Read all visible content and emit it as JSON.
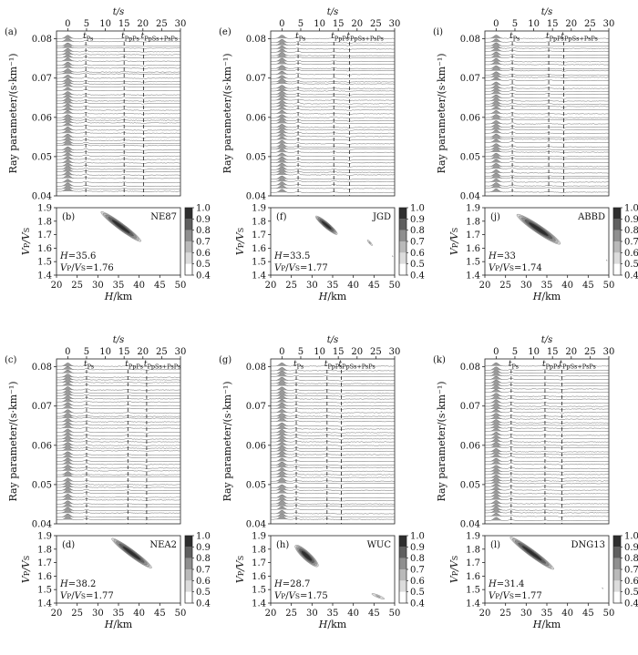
{
  "chart_data": {
    "common": {
      "rf_time_axis": {
        "label": "t/s",
        "ticks": [
          0,
          5,
          10,
          15,
          20,
          25,
          30
        ],
        "range": [
          -3,
          30
        ]
      },
      "rf_ray_axis": {
        "label": "Ray parameter/(s·km⁻¹)",
        "ticks": [
          "0.04",
          "0.05",
          "0.06",
          "0.07",
          "0.08"
        ],
        "range": [
          0.04,
          0.082
        ]
      },
      "phase_labels": [
        "t_Ps",
        "t_PpPs",
        "t_PpSs+PsPs"
      ],
      "hk_x_axis": {
        "label": "H/km",
        "ticks": [
          20,
          25,
          30,
          35,
          40,
          45,
          50
        ],
        "range": [
          20,
          50
        ]
      },
      "hk_y_axis": {
        "label": "VP/VS",
        "ticks": [
          "1.4",
          "1.5",
          "1.6",
          "1.7",
          "1.8",
          "1.9"
        ],
        "range": [
          1.4,
          1.9
        ]
      },
      "colorbar": {
        "ticks": [
          "0.4",
          "0.5",
          "0.6",
          "0.7",
          "0.8",
          "0.9",
          "1.0"
        ],
        "range": [
          0.4,
          1.0
        ]
      }
    },
    "stations": [
      {
        "rf_label": "(a)",
        "hk_label": "(b)",
        "station": "NE87",
        "H": "35.6",
        "VpVs": "1.76",
        "type": "heatmap",
        "t_ps": 4.8,
        "t_ppps": 15.0,
        "t_ppss": 20.2,
        "blobs": [
          {
            "H": 35.6,
            "k": 1.76,
            "slope": -0.022,
            "sa": 5.5,
            "sb": 0.035,
            "amp": 1.0
          }
        ]
      },
      {
        "rf_label": "(e)",
        "hk_label": "(f)",
        "station": "JGD",
        "H": "33.5",
        "VpVs": "1.77",
        "type": "heatmap",
        "t_ps": 4.3,
        "t_ppps": 13.8,
        "t_ppss": 18.0,
        "blobs": [
          {
            "H": 33.5,
            "k": 1.77,
            "slope": -0.024,
            "sa": 3.0,
            "sb": 0.03,
            "amp": 1.0
          },
          {
            "H": 44.0,
            "k": 1.64,
            "slope": -0.03,
            "sa": 1.2,
            "sb": 0.02,
            "amp": 0.6
          },
          {
            "H": 49.5,
            "k": 1.54,
            "slope": -0.03,
            "sa": 0.6,
            "sb": 0.015,
            "amp": 0.5
          }
        ]
      },
      {
        "rf_label": "(i)",
        "hk_label": "(j)",
        "station": "ABBD",
        "H": "33",
        "VpVs": "1.74",
        "type": "heatmap",
        "t_ps": 4.3,
        "t_ppps": 14.0,
        "t_ppss": 18.0,
        "blobs": [
          {
            "H": 33.0,
            "k": 1.74,
            "slope": -0.02,
            "sa": 6.0,
            "sb": 0.04,
            "amp": 1.0
          },
          {
            "H": 49.5,
            "k": 1.51,
            "slope": -0.03,
            "sa": 0.5,
            "sb": 0.015,
            "amp": 0.5
          }
        ]
      },
      {
        "rf_label": "(c)",
        "hk_label": "(d)",
        "station": "NEA2",
        "H": "38.2",
        "VpVs": "1.77",
        "type": "heatmap",
        "t_ps": 5.0,
        "t_ppps": 16.0,
        "t_ppss": 21.0,
        "blobs": [
          {
            "H": 38.2,
            "k": 1.77,
            "slope": -0.022,
            "sa": 5.5,
            "sb": 0.035,
            "amp": 1.0
          }
        ]
      },
      {
        "rf_label": "(g)",
        "hk_label": "(h)",
        "station": "WUC",
        "H": "28.7",
        "VpVs": "1.75",
        "type": "heatmap",
        "t_ps": 3.8,
        "t_ppps": 12.0,
        "t_ppss": 15.8,
        "blobs": [
          {
            "H": 28.7,
            "k": 1.75,
            "slope": -0.025,
            "sa": 3.2,
            "sb": 0.045,
            "amp": 1.0
          },
          {
            "H": 46.0,
            "k": 1.45,
            "slope": -0.012,
            "sa": 3.0,
            "sb": 0.02,
            "amp": 0.6
          }
        ]
      },
      {
        "rf_label": "(k)",
        "hk_label": "(l)",
        "station": "DNG13",
        "H": "31.4",
        "VpVs": "1.77",
        "type": "heatmap",
        "t_ps": 4.0,
        "t_ppps": 13.0,
        "t_ppss": 17.5,
        "blobs": [
          {
            "H": 31.4,
            "k": 1.77,
            "slope": -0.022,
            "sa": 6.0,
            "sb": 0.035,
            "amp": 1.0
          },
          {
            "H": 48.5,
            "k": 1.51,
            "slope": -0.03,
            "sa": 0.6,
            "sb": 0.015,
            "amp": 0.5
          }
        ]
      }
    ]
  }
}
